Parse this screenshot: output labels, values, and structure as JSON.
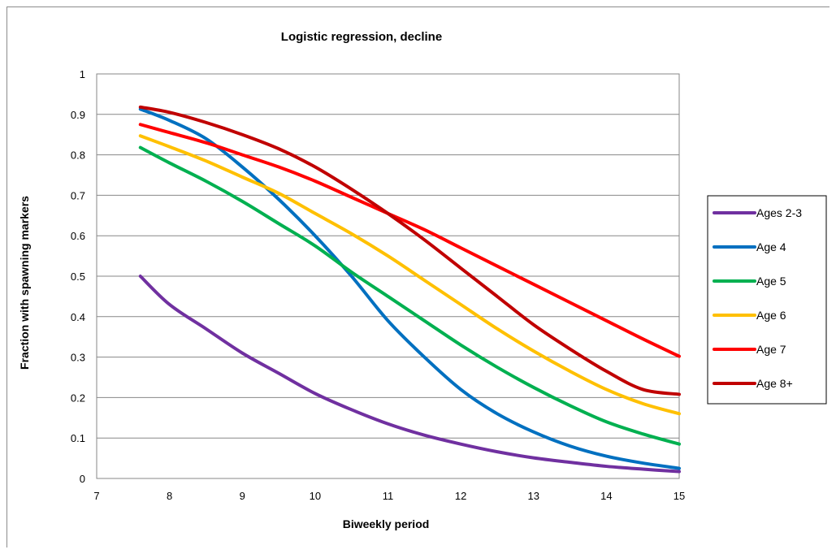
{
  "chart_data": {
    "type": "line",
    "title": "Logistic regression, decline",
    "xlabel": "Biweekly period",
    "ylabel": "Fraction with spawning markers",
    "xlim": [
      7,
      15
    ],
    "ylim": [
      0,
      1
    ],
    "x_ticks": [
      "7",
      "8",
      "9",
      "10",
      "11",
      "12",
      "13",
      "14",
      "15"
    ],
    "y_ticks": [
      "0",
      "0.1",
      "0.2",
      "0.3",
      "0.4",
      "0.5",
      "0.6",
      "0.7",
      "0.8",
      "0.9",
      "1"
    ],
    "grid": "horizontal",
    "legend_position": "right",
    "x": [
      7.6,
      8,
      8.5,
      9,
      9.5,
      10,
      10.5,
      11,
      11.5,
      12,
      12.5,
      13,
      13.5,
      14,
      14.5,
      15
    ],
    "series": [
      {
        "name": "Ages 2-3",
        "color": "#7030a0",
        "values": [
          0.5,
          0.43,
          0.37,
          0.31,
          0.26,
          0.21,
          0.17,
          0.135,
          0.107,
          0.085,
          0.066,
          0.051,
          0.04,
          0.03,
          0.023,
          0.017
        ]
      },
      {
        "name": "Age 4",
        "color": "#0070c0",
        "values": [
          0.913,
          0.885,
          0.84,
          0.77,
          0.69,
          0.6,
          0.5,
          0.39,
          0.3,
          0.22,
          0.16,
          0.115,
          0.08,
          0.055,
          0.038,
          0.025
        ]
      },
      {
        "name": "Age 5",
        "color": "#00b050",
        "values": [
          0.818,
          0.78,
          0.735,
          0.685,
          0.63,
          0.575,
          0.51,
          0.45,
          0.39,
          0.33,
          0.275,
          0.225,
          0.18,
          0.14,
          0.11,
          0.085
        ]
      },
      {
        "name": "Age 6",
        "color": "#ffc000",
        "values": [
          0.847,
          0.82,
          0.785,
          0.745,
          0.705,
          0.655,
          0.605,
          0.55,
          0.49,
          0.43,
          0.37,
          0.315,
          0.265,
          0.22,
          0.185,
          0.16
        ]
      },
      {
        "name": "Age 7",
        "color": "#ff0000",
        "values": [
          0.875,
          0.855,
          0.83,
          0.8,
          0.77,
          0.735,
          0.695,
          0.655,
          0.615,
          0.57,
          0.525,
          0.48,
          0.435,
          0.39,
          0.345,
          0.302
        ]
      },
      {
        "name": "Age 8+",
        "color": "#c00000",
        "values": [
          0.918,
          0.905,
          0.88,
          0.85,
          0.815,
          0.77,
          0.715,
          0.655,
          0.59,
          0.52,
          0.45,
          0.38,
          0.32,
          0.265,
          0.22,
          0.208
        ]
      }
    ]
  }
}
